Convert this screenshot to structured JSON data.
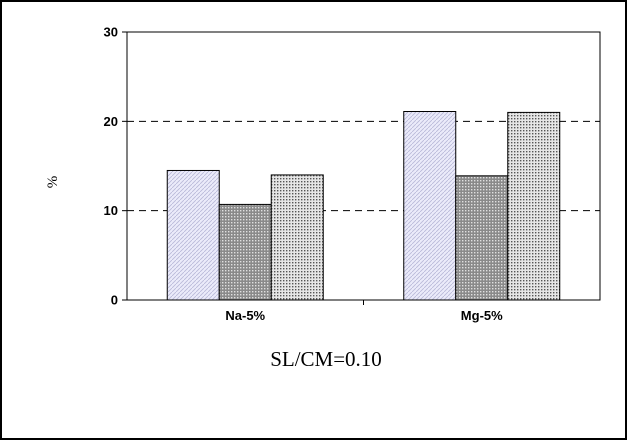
{
  "chart_data": {
    "type": "bar",
    "title": "",
    "caption": "SL/CM=0.10",
    "xlabel": "",
    "ylabel": "%",
    "ylim": [
      0,
      30
    ],
    "yticks": [
      0,
      10,
      20,
      30
    ],
    "grid": "dashed-horizontal",
    "legend": "none",
    "categories": [
      "Na-5%",
      "Mg-5%"
    ],
    "series": [
      {
        "values": [
          14.5,
          21.1
        ],
        "color": "#e4e4f6",
        "pattern": "diagonal-lavender"
      },
      {
        "values": [
          10.7,
          13.9
        ],
        "color": "#9a9a9a",
        "pattern": "dense-dots"
      },
      {
        "values": [
          14.0,
          21.0
        ],
        "color": "#c4c4c4",
        "pattern": "light-dots"
      }
    ]
  }
}
